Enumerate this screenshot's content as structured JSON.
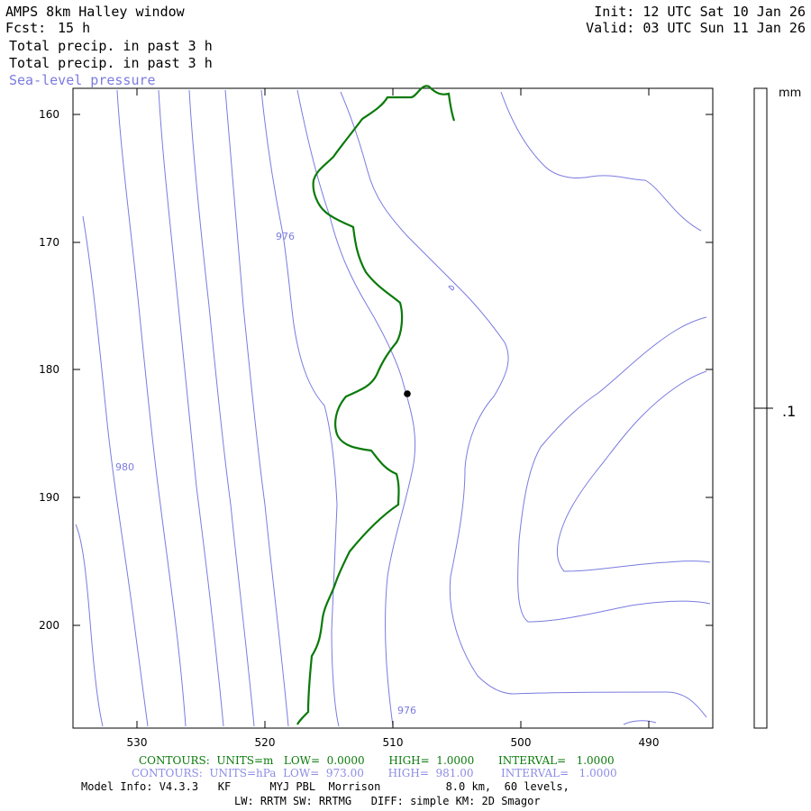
{
  "header": {
    "title": "AMPS 8km Halley window",
    "fcst_label": "Fcst:",
    "fcst_value": "15 h",
    "init": "Init: 12 UTC Sat 10 Jan 26",
    "valid": "Valid: 03 UTC Sun 11 Jan 26",
    "field1": "Total precip. in past 3 h",
    "field2": "Total precip. in past 3 h",
    "field3": "Sea-level pressure"
  },
  "map": {
    "x_ticks": [
      "530",
      "520",
      "510",
      "500",
      "490"
    ],
    "y_ticks": [
      "160",
      "170",
      "180",
      "190",
      "200"
    ],
    "contour_labels": [
      "976",
      "980",
      "976"
    ]
  },
  "colorbar": {
    "unit": "mm",
    "label": ".1"
  },
  "footer": {
    "contours_green": "CONTOURS:  UNITS=m   LOW=  0.0000       HIGH=  1.0000       INTERVAL=   1.0000",
    "contours_blue": "CONTOURS:  UNITS=hPa  LOW=  973.00       HIGH=  981.00        INTERVAL=   1.0000",
    "model_info": "Model Info: V4.3.3   KF      MYJ PBL  Morrison          8.0 km,  60 levels,",
    "physics": "LW: RRTM SW: RRTMG   DIFF: simple KM: 2D Smagor"
  },
  "colors": {
    "pressure": "#7b7be0",
    "precip": "#0a7a0a",
    "frame": "#000000"
  }
}
